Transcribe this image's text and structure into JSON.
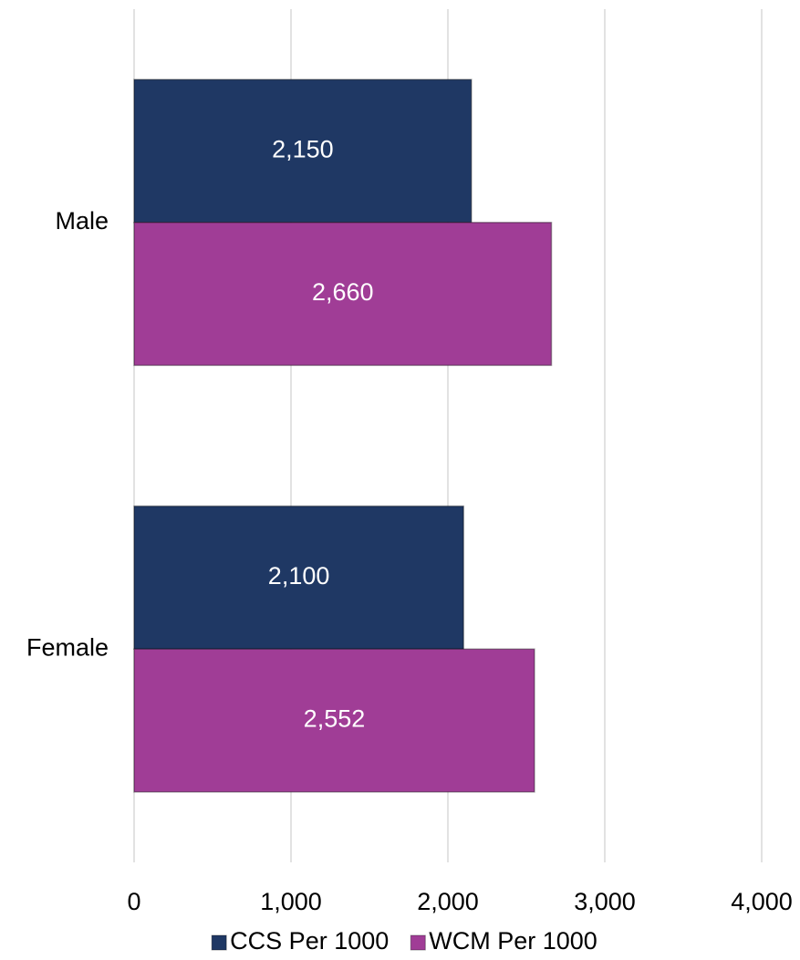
{
  "chart_data": {
    "type": "barh",
    "categories": [
      "Male",
      "Female"
    ],
    "series": [
      {
        "name": "CCS Per 1000",
        "color": "#1f3864",
        "values": [
          2150,
          2100
        ],
        "value_labels": [
          "2,150",
          "2,100"
        ]
      },
      {
        "name": "WCM Per 1000",
        "color": "#a03d96",
        "values": [
          2660,
          2552
        ],
        "value_labels": [
          "2,660",
          "2,552"
        ]
      }
    ],
    "xlim": [
      0,
      4000
    ],
    "xticks": [
      0,
      {
        "value": 1000,
        "label": "1,000"
      },
      {
        "value": 2000,
        "label": "2,000"
      },
      {
        "value": 3000,
        "label": "3,000"
      },
      {
        "value": 4000,
        "label": "4,000"
      }
    ],
    "grid": true,
    "legend": "bottom"
  }
}
